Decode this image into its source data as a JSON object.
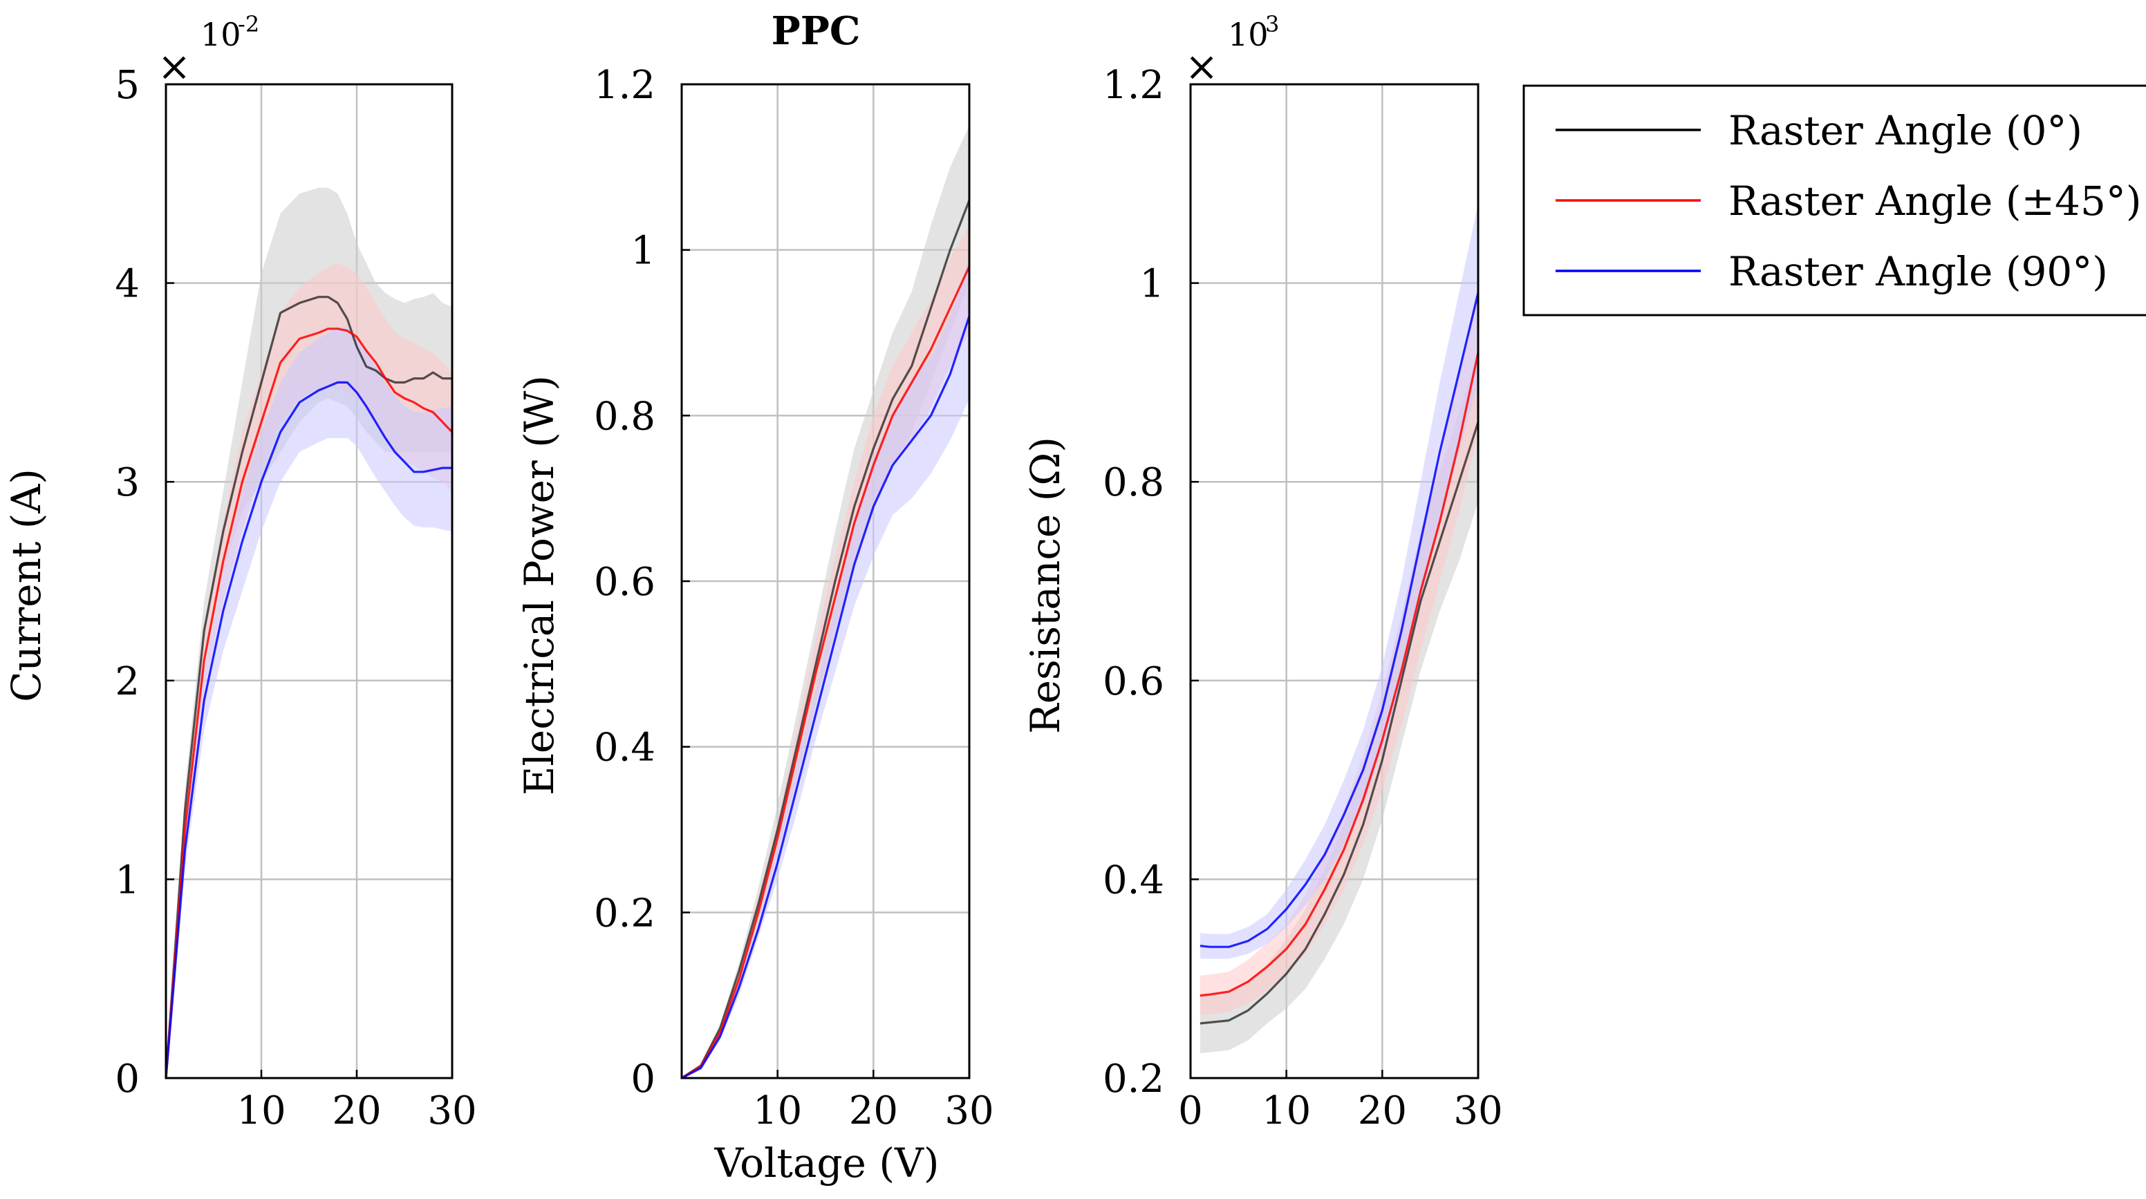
{
  "figure_title": "PPC",
  "colors": {
    "raster_0": "#000000",
    "raster_45": "#ff0000",
    "raster_90": "#0000ff",
    "band_0": "#cccccc",
    "band_45": "#ffc8c8",
    "band_90": "#c8c8ff",
    "grid": "#c0c0c0"
  },
  "legend": {
    "entries": [
      "Raster Angle (0°)",
      "Raster Angle (±45°)",
      "Raster Angle (90°)"
    ]
  },
  "chart_data": [
    {
      "type": "line",
      "title": "",
      "xlabel": "",
      "ylabel": "Current (A)",
      "xlim": [
        0,
        30
      ],
      "ylim": [
        0,
        5
      ],
      "xticks": [
        10,
        20,
        30
      ],
      "yticks": [
        0,
        1,
        2,
        3,
        4,
        5
      ],
      "xtick_labels": [
        "10",
        "20",
        "30"
      ],
      "ytick_labels": [
        "0",
        "1",
        "2",
        "3",
        "4",
        "5"
      ],
      "exponent_base": "×",
      "exponent_prefix": "10",
      "exponent_power": "-2",
      "grid": true,
      "x": [
        0,
        2,
        4,
        6,
        8,
        10,
        12,
        14,
        16,
        17,
        18,
        19,
        20,
        21,
        22,
        23,
        24,
        25,
        26,
        27,
        28,
        29,
        30
      ],
      "series": [
        {
          "name": "Raster Angle (0°)",
          "values": [
            0,
            1.35,
            2.25,
            2.75,
            3.15,
            3.5,
            3.85,
            3.9,
            3.93,
            3.93,
            3.9,
            3.82,
            3.68,
            3.58,
            3.56,
            3.52,
            3.5,
            3.5,
            3.52,
            3.52,
            3.55,
            3.52,
            3.52
          ],
          "lower": [
            0,
            1.25,
            2.1,
            2.55,
            2.85,
            3.0,
            3.15,
            3.3,
            3.4,
            3.42,
            3.4,
            3.38,
            3.32,
            3.25,
            3.2,
            3.15,
            3.15,
            3.15,
            3.15,
            3.15,
            3.15,
            3.15,
            3.15
          ],
          "upper": [
            0,
            1.45,
            2.4,
            2.95,
            3.5,
            4.05,
            4.35,
            4.45,
            4.48,
            4.48,
            4.45,
            4.35,
            4.2,
            4.1,
            4.0,
            3.95,
            3.92,
            3.9,
            3.92,
            3.93,
            3.95,
            3.9,
            3.88
          ]
        },
        {
          "name": "Raster Angle (±45°)",
          "values": [
            0,
            1.25,
            2.1,
            2.6,
            3.0,
            3.3,
            3.6,
            3.72,
            3.75,
            3.77,
            3.77,
            3.76,
            3.73,
            3.66,
            3.6,
            3.52,
            3.45,
            3.42,
            3.4,
            3.37,
            3.35,
            3.3,
            3.25
          ],
          "lower": [
            0,
            1.15,
            1.95,
            2.4,
            2.75,
            3.05,
            3.3,
            3.42,
            3.45,
            3.47,
            3.47,
            3.45,
            3.42,
            3.35,
            3.3,
            3.22,
            3.15,
            3.1,
            3.08,
            3.05,
            3.02,
            3.0,
            2.95
          ],
          "upper": [
            0,
            1.35,
            2.25,
            2.8,
            3.25,
            3.55,
            3.85,
            3.98,
            4.05,
            4.08,
            4.1,
            4.08,
            4.05,
            3.98,
            3.9,
            3.82,
            3.75,
            3.72,
            3.7,
            3.67,
            3.65,
            3.6,
            3.55
          ]
        },
        {
          "name": "Raster Angle (90°)",
          "values": [
            0,
            1.15,
            1.9,
            2.35,
            2.7,
            3.0,
            3.25,
            3.4,
            3.46,
            3.48,
            3.5,
            3.5,
            3.45,
            3.38,
            3.3,
            3.22,
            3.15,
            3.1,
            3.05,
            3.05,
            3.06,
            3.07,
            3.07
          ],
          "lower": [
            0,
            1.05,
            1.75,
            2.15,
            2.45,
            2.75,
            3.0,
            3.15,
            3.2,
            3.22,
            3.22,
            3.22,
            3.18,
            3.1,
            3.02,
            2.95,
            2.88,
            2.82,
            2.78,
            2.77,
            2.77,
            2.76,
            2.75
          ],
          "upper": [
            0,
            1.25,
            2.05,
            2.55,
            2.95,
            3.25,
            3.5,
            3.65,
            3.72,
            3.75,
            3.78,
            3.78,
            3.73,
            3.66,
            3.58,
            3.5,
            3.43,
            3.38,
            3.35,
            3.35,
            3.36,
            3.37,
            3.38
          ]
        }
      ]
    },
    {
      "type": "line",
      "title": "PPC",
      "xlabel": "Voltage (V)",
      "ylabel": "Electrical Power (W)",
      "xlim": [
        0,
        30
      ],
      "ylim": [
        0,
        1.2
      ],
      "xticks": [
        10,
        20,
        30
      ],
      "yticks": [
        0,
        0.2,
        0.4,
        0.6,
        0.8,
        1.0,
        1.2
      ],
      "xtick_labels": [
        "10",
        "20",
        "30"
      ],
      "ytick_labels": [
        "0",
        "0.2",
        "0.4",
        "0.6",
        "0.8",
        "1",
        "1.2"
      ],
      "grid": true,
      "x": [
        0,
        2,
        4,
        6,
        8,
        10,
        12,
        14,
        16,
        18,
        20,
        22,
        24,
        26,
        28,
        30
      ],
      "series": [
        {
          "name": "Raster Angle (0°)",
          "values": [
            0,
            0.015,
            0.06,
            0.13,
            0.21,
            0.3,
            0.4,
            0.5,
            0.6,
            0.69,
            0.76,
            0.82,
            0.86,
            0.93,
            1.0,
            1.06
          ],
          "lower": [
            0,
            0.013,
            0.055,
            0.12,
            0.19,
            0.27,
            0.36,
            0.45,
            0.54,
            0.62,
            0.69,
            0.74,
            0.78,
            0.84,
            0.9,
            0.96
          ],
          "upper": [
            0,
            0.017,
            0.065,
            0.14,
            0.23,
            0.33,
            0.44,
            0.55,
            0.66,
            0.76,
            0.83,
            0.9,
            0.95,
            1.03,
            1.1,
            1.15
          ]
        },
        {
          "name": "Raster Angle (±45°)",
          "values": [
            0,
            0.014,
            0.055,
            0.12,
            0.2,
            0.29,
            0.39,
            0.49,
            0.58,
            0.67,
            0.74,
            0.8,
            0.84,
            0.88,
            0.93,
            0.98
          ],
          "lower": [
            0,
            0.012,
            0.05,
            0.11,
            0.18,
            0.27,
            0.36,
            0.45,
            0.54,
            0.62,
            0.69,
            0.74,
            0.77,
            0.81,
            0.86,
            0.9
          ],
          "upper": [
            0,
            0.016,
            0.06,
            0.13,
            0.22,
            0.31,
            0.42,
            0.53,
            0.63,
            0.72,
            0.8,
            0.86,
            0.9,
            0.94,
            0.99,
            1.03
          ]
        },
        {
          "name": "Raster Angle (90°)",
          "values": [
            0,
            0.012,
            0.05,
            0.11,
            0.18,
            0.26,
            0.35,
            0.44,
            0.53,
            0.62,
            0.69,
            0.74,
            0.77,
            0.8,
            0.85,
            0.92
          ],
          "lower": [
            0,
            0.011,
            0.046,
            0.1,
            0.17,
            0.24,
            0.32,
            0.41,
            0.49,
            0.57,
            0.63,
            0.68,
            0.7,
            0.73,
            0.77,
            0.82
          ],
          "upper": [
            0,
            0.013,
            0.054,
            0.12,
            0.19,
            0.28,
            0.38,
            0.47,
            0.57,
            0.67,
            0.75,
            0.8,
            0.84,
            0.87,
            0.92,
            0.99
          ]
        }
      ]
    },
    {
      "type": "line",
      "title": "",
      "xlabel": "",
      "ylabel": "Resistance (Ω)",
      "xlim": [
        0,
        30
      ],
      "ylim": [
        0.2,
        1.2
      ],
      "xticks": [
        0,
        10,
        20,
        30
      ],
      "yticks": [
        0.2,
        0.4,
        0.6,
        0.8,
        1.0,
        1.2
      ],
      "xtick_labels": [
        "0",
        "10",
        "20",
        "30"
      ],
      "ytick_labels": [
        "0.2",
        "0.4",
        "0.6",
        "0.8",
        "1",
        "1.2"
      ],
      "exponent_base": "×",
      "exponent_prefix": "10",
      "exponent_power": "3",
      "grid": true,
      "x": [
        1,
        2,
        4,
        6,
        8,
        10,
        12,
        14,
        16,
        18,
        20,
        22,
        24,
        26,
        28,
        30
      ],
      "series": [
        {
          "name": "Raster Angle (0°)",
          "values": [
            0.255,
            0.256,
            0.258,
            0.268,
            0.285,
            0.305,
            0.33,
            0.365,
            0.405,
            0.455,
            0.52,
            0.6,
            0.68,
            0.74,
            0.8,
            0.86
          ],
          "lower": [
            0.225,
            0.226,
            0.228,
            0.238,
            0.255,
            0.27,
            0.29,
            0.32,
            0.355,
            0.4,
            0.46,
            0.535,
            0.61,
            0.67,
            0.72,
            0.78
          ],
          "upper": [
            0.285,
            0.286,
            0.288,
            0.298,
            0.315,
            0.34,
            0.37,
            0.41,
            0.455,
            0.51,
            0.58,
            0.665,
            0.75,
            0.81,
            0.87,
            0.93
          ]
        },
        {
          "name": "Raster Angle (±45°)",
          "values": [
            0.283,
            0.284,
            0.287,
            0.297,
            0.312,
            0.33,
            0.355,
            0.39,
            0.43,
            0.48,
            0.54,
            0.61,
            0.69,
            0.76,
            0.84,
            0.93
          ],
          "lower": [
            0.263,
            0.264,
            0.267,
            0.275,
            0.288,
            0.305,
            0.325,
            0.355,
            0.39,
            0.435,
            0.49,
            0.555,
            0.63,
            0.7,
            0.77,
            0.85
          ],
          "upper": [
            0.303,
            0.304,
            0.307,
            0.319,
            0.336,
            0.355,
            0.385,
            0.425,
            0.47,
            0.525,
            0.59,
            0.665,
            0.75,
            0.82,
            0.91,
            1.0
          ]
        },
        {
          "name": "Raster Angle (90°)",
          "values": [
            0.333,
            0.332,
            0.332,
            0.338,
            0.35,
            0.37,
            0.395,
            0.425,
            0.465,
            0.51,
            0.57,
            0.65,
            0.74,
            0.83,
            0.91,
            0.99
          ],
          "lower": [
            0.32,
            0.32,
            0.32,
            0.325,
            0.335,
            0.352,
            0.374,
            0.4,
            0.435,
            0.475,
            0.53,
            0.6,
            0.68,
            0.76,
            0.83,
            0.9
          ],
          "upper": [
            0.346,
            0.345,
            0.345,
            0.352,
            0.365,
            0.39,
            0.42,
            0.455,
            0.5,
            0.55,
            0.615,
            0.7,
            0.8,
            0.9,
            0.99,
            1.08
          ]
        }
      ]
    }
  ]
}
